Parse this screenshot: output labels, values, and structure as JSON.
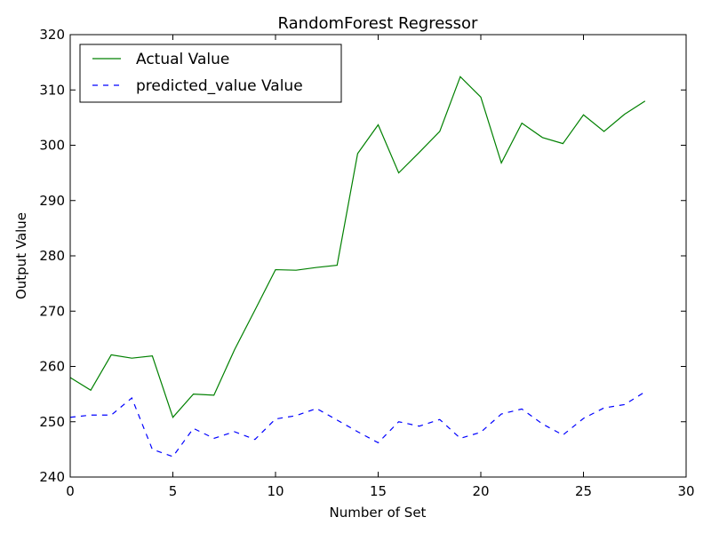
{
  "chart_data": {
    "type": "line",
    "title": "RandomForest Regressor",
    "xlabel": "Number of Set",
    "ylabel": "Output Value",
    "xlim": [
      0,
      30
    ],
    "ylim": [
      240,
      320
    ],
    "xticks": [
      0,
      5,
      10,
      15,
      20,
      25,
      30
    ],
    "yticks": [
      240,
      250,
      260,
      270,
      280,
      290,
      300,
      310,
      320
    ],
    "grid": false,
    "legend_position": "top-left",
    "x": [
      0,
      1,
      2,
      3,
      4,
      5,
      6,
      7,
      8,
      9,
      10,
      11,
      12,
      13,
      14,
      15,
      16,
      17,
      18,
      19,
      20,
      21,
      22,
      23,
      24,
      25,
      26,
      27,
      28
    ],
    "series": [
      {
        "name": "Actual Value",
        "color": "#008000",
        "style": "solid",
        "values": [
          258.0,
          255.7,
          262.1,
          261.5,
          261.9,
          250.8,
          255.0,
          254.8,
          263.0,
          270.2,
          277.5,
          277.4,
          277.9,
          278.3,
          298.5,
          303.7,
          295.0,
          298.7,
          302.5,
          312.4,
          308.7,
          296.8,
          304.0,
          301.4,
          300.3,
          305.5,
          302.5,
          305.6,
          308.0
        ]
      },
      {
        "name": "predicted_value Value",
        "color": "#0000ff",
        "style": "dashed",
        "values": [
          250.8,
          251.2,
          251.2,
          254.3,
          245.0,
          243.7,
          248.8,
          247.0,
          248.2,
          246.8,
          250.5,
          251.1,
          252.4,
          250.3,
          248.2,
          246.2,
          250.0,
          249.2,
          250.4,
          247.0,
          248.1,
          251.4,
          252.3,
          249.6,
          247.6,
          250.6,
          252.5,
          253.1,
          255.4
        ]
      }
    ]
  }
}
